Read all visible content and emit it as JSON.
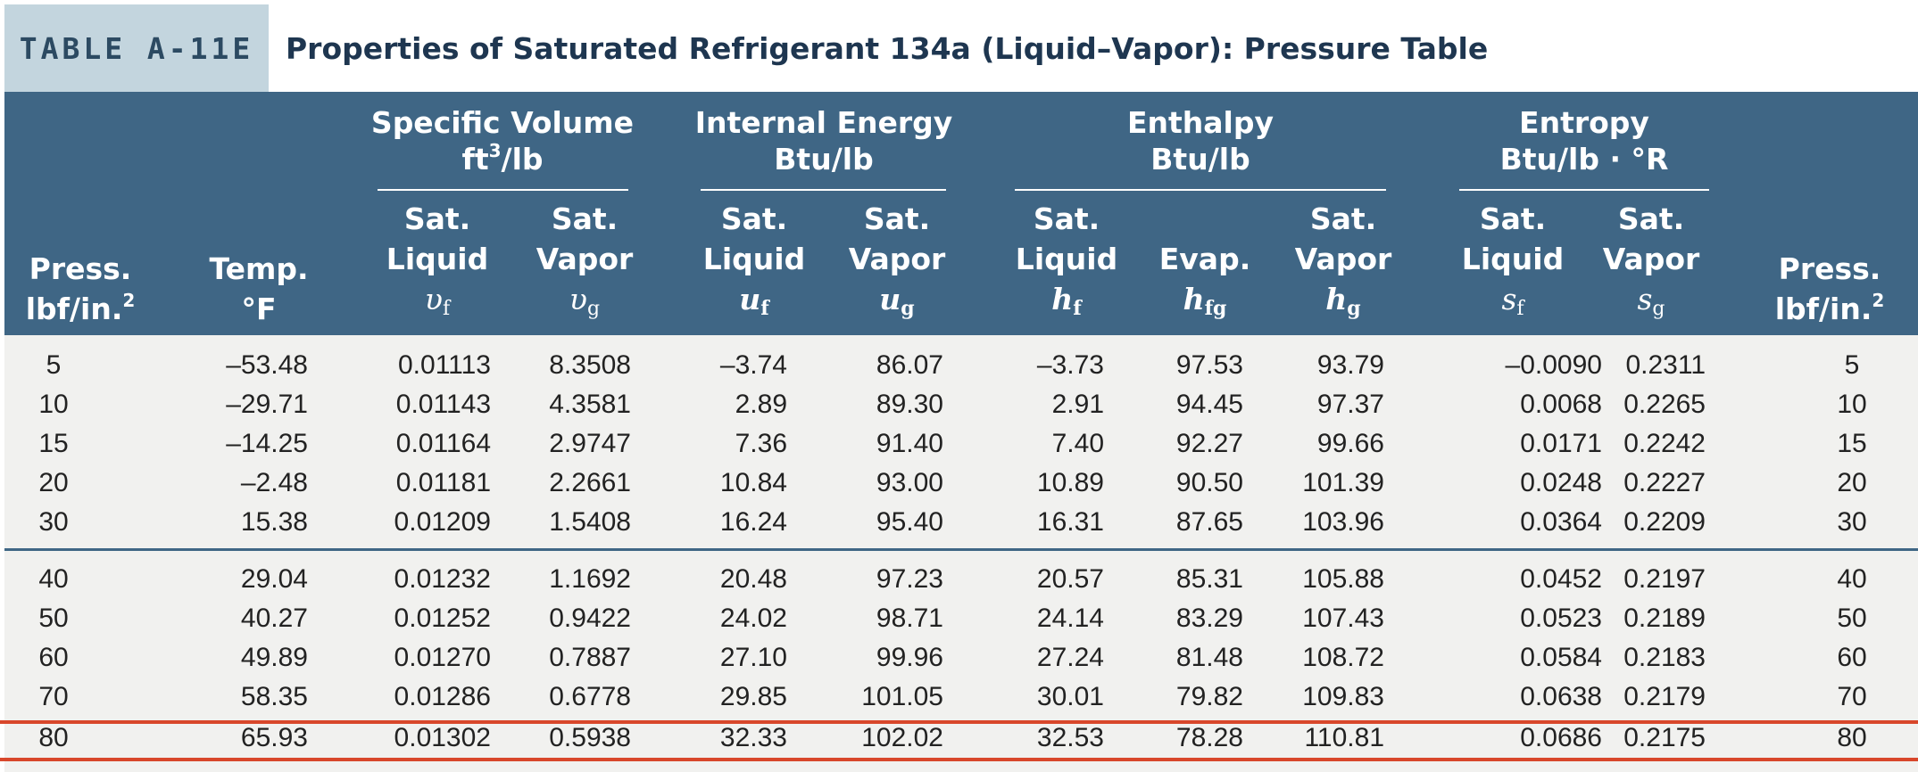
{
  "table_label": "TABLE A-11E",
  "title": "Properties of Saturated Refrigerant 134a (Liquid–Vapor): Pressure Table",
  "header": {
    "press_left": {
      "line1": "Press.",
      "line2": "lbf/in.",
      "sup": "2"
    },
    "temp": {
      "line1": "Temp.",
      "line2": "°F"
    },
    "specific_volume": {
      "line1": "Specific Volume",
      "line2": "ft",
      "sup": "3",
      "line2_rest": "/lb"
    },
    "internal_energy": {
      "line1": "Internal Energy",
      "line2": "Btu/lb"
    },
    "enthalpy": {
      "line1": "Enthalpy",
      "line2": "Btu/lb"
    },
    "entropy": {
      "line1": "Entropy",
      "line2": "Btu/lb · °R"
    },
    "sat": "Sat.",
    "liquid": "Liquid",
    "vapor": "Vapor",
    "evap": "Evap.",
    "press_right": {
      "line1": "Press.",
      "line2": "lbf/in.",
      "sup": "2"
    },
    "symbols": {
      "vf": {
        "base": "υ",
        "sub": "f"
      },
      "vg": {
        "base": "υ",
        "sub": "g"
      },
      "uf": {
        "base": "u",
        "sub": "f"
      },
      "ug": {
        "base": "u",
        "sub": "g"
      },
      "hf": {
        "base": "h",
        "sub": "f"
      },
      "hfg": {
        "base": "h",
        "sub": "fg"
      },
      "hg": {
        "base": "h",
        "sub": "g"
      },
      "sf": {
        "base": "s",
        "sub": "f"
      },
      "sg": {
        "base": "s",
        "sub": "g"
      }
    }
  },
  "rows": [
    [
      "5",
      "–53.48",
      "0.01113",
      "8.3508",
      "–3.74",
      "86.07",
      "–3.73",
      "97.53",
      "93.79",
      "–0.0090",
      "0.2311",
      "5"
    ],
    [
      "10",
      "–29.71",
      "0.01143",
      "4.3581",
      "2.89",
      "89.30",
      "2.91",
      "94.45",
      "97.37",
      "0.0068",
      "0.2265",
      "10"
    ],
    [
      "15",
      "–14.25",
      "0.01164",
      "2.9747",
      "7.36",
      "91.40",
      "7.40",
      "92.27",
      "99.66",
      "0.0171",
      "0.2242",
      "15"
    ],
    [
      "20",
      "–2.48",
      "0.01181",
      "2.2661",
      "10.84",
      "93.00",
      "10.89",
      "90.50",
      "101.39",
      "0.0248",
      "0.2227",
      "20"
    ],
    [
      "30",
      "15.38",
      "0.01209",
      "1.5408",
      "16.24",
      "95.40",
      "16.31",
      "87.65",
      "103.96",
      "0.0364",
      "0.2209",
      "30"
    ],
    [
      "40",
      "29.04",
      "0.01232",
      "1.1692",
      "20.48",
      "97.23",
      "20.57",
      "85.31",
      "105.88",
      "0.0452",
      "0.2197",
      "40"
    ],
    [
      "50",
      "40.27",
      "0.01252",
      "0.9422",
      "24.02",
      "98.71",
      "24.14",
      "83.29",
      "107.43",
      "0.0523",
      "0.2189",
      "50"
    ],
    [
      "60",
      "49.89",
      "0.01270",
      "0.7887",
      "27.10",
      "99.96",
      "27.24",
      "81.48",
      "108.72",
      "0.0584",
      "0.2183",
      "60"
    ],
    [
      "70",
      "58.35",
      "0.01286",
      "0.6778",
      "29.85",
      "101.05",
      "30.01",
      "79.82",
      "109.83",
      "0.0638",
      "0.2179",
      "70"
    ],
    [
      "80",
      "65.93",
      "0.01302",
      "0.5938",
      "32.33",
      "102.02",
      "32.53",
      "78.28",
      "110.81",
      "0.0686",
      "0.2175",
      "80"
    ]
  ],
  "highlight_row": "80",
  "colors": {
    "header_bg": "#3f6685",
    "tag_bg": "#c3d5de",
    "body_bg": "#f1f1ef",
    "highlight": "#d8472b"
  }
}
